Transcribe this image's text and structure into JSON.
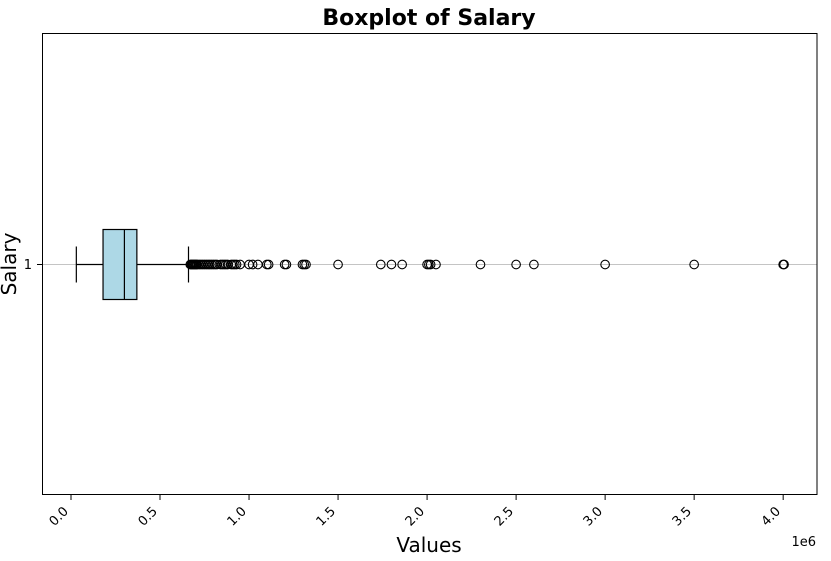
{
  "chart_data": {
    "type": "boxplot",
    "orientation": "horizontal",
    "title": "Boxplot of Salary",
    "xlabel": "Values",
    "ylabel": "Salary",
    "x_offset_label": "1e6",
    "xlim": [
      -0.16,
      4.19
    ],
    "x_scale": 1000000,
    "x_ticks": [
      0.0,
      0.5,
      1.0,
      1.5,
      2.0,
      2.5,
      3.0,
      3.5,
      4.0
    ],
    "x_tick_labels": [
      "0.0",
      "0.5",
      "1.0",
      "1.5",
      "2.0",
      "2.5",
      "3.0",
      "3.5",
      "4.0"
    ],
    "y_tick_labels": [
      "1"
    ],
    "grid": "y-axis only",
    "box_color": "#add8e6",
    "series": [
      {
        "category": "1",
        "whisker_low": 30000,
        "q1": 180000,
        "median": 300000,
        "q3": 370000,
        "whisker_high": 660000,
        "outliers": [
          670000,
          675000,
          680000,
          685000,
          690000,
          695000,
          700000,
          705000,
          710000,
          720000,
          730000,
          740000,
          750000,
          760000,
          770000,
          780000,
          790000,
          800000,
          810000,
          820000,
          840000,
          850000,
          860000,
          870000,
          880000,
          900000,
          910000,
          920000,
          930000,
          950000,
          1000000,
          1020000,
          1050000,
          1100000,
          1110000,
          1200000,
          1210000,
          1300000,
          1310000,
          1320000,
          1500000,
          1740000,
          1800000,
          1860000,
          2000000,
          2010000,
          2020000,
          2050000,
          2300000,
          2500000,
          2600000,
          3000000,
          3500000,
          4000000,
          4005000
        ]
      }
    ]
  }
}
